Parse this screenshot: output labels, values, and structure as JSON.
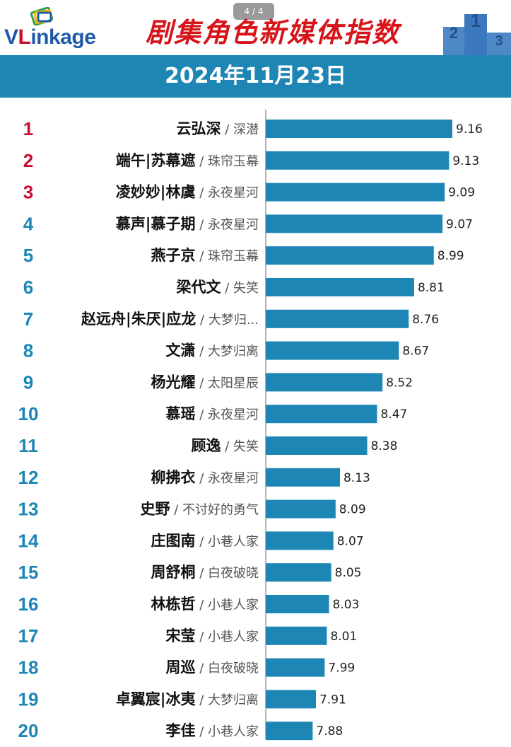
{
  "page_indicator": "4 / 4",
  "logo": {
    "v": "V",
    "l": "L",
    "rest": "inkage"
  },
  "title": "剧集角色新媒体指数",
  "date": "2024年11月23日",
  "colors": {
    "bar": "#1d86b5",
    "rank_top": "#c8102e",
    "rank_other": "#1d86b5",
    "title": "#d7141a",
    "banner": "#1d86b5"
  },
  "icons": [
    "podium-icon",
    "logo-mark-icon"
  ],
  "chart_data": {
    "type": "bar",
    "orientation": "horizontal",
    "title": "剧集角色新媒体指数",
    "subtitle": "2024年11月23日",
    "xlim": [
      0,
      9.16
    ],
    "grid": false,
    "rows": [
      {
        "rank": "1",
        "name": "云弘深",
        "show": "深潜",
        "value": 9.16
      },
      {
        "rank": "2",
        "name": "端午|苏幕遮",
        "show": "珠帘玉幕",
        "value": 9.13
      },
      {
        "rank": "3",
        "name": "凌妙妙|林虞",
        "show": "永夜星河",
        "value": 9.09
      },
      {
        "rank": "4",
        "name": "慕声|慕子期",
        "show": "永夜星河",
        "value": 9.07
      },
      {
        "rank": "5",
        "name": "燕子京",
        "show": "珠帘玉幕",
        "value": 8.99
      },
      {
        "rank": "6",
        "name": "梁代文",
        "show": "失笑",
        "value": 8.81
      },
      {
        "rank": "7",
        "name": "赵远舟|朱厌|应龙",
        "show": "大梦归...",
        "value": 8.76
      },
      {
        "rank": "8",
        "name": "文潇",
        "show": "大梦归离",
        "value": 8.67
      },
      {
        "rank": "9",
        "name": "杨光耀",
        "show": "太阳星辰",
        "value": 8.52
      },
      {
        "rank": "10",
        "name": "慕瑶",
        "show": "永夜星河",
        "value": 8.47
      },
      {
        "rank": "11",
        "name": "顾逸",
        "show": "失笑",
        "value": 8.38
      },
      {
        "rank": "12",
        "name": "柳拂衣",
        "show": "永夜星河",
        "value": 8.13
      },
      {
        "rank": "13",
        "name": "史野",
        "show": "不讨好的勇气",
        "value": 8.09
      },
      {
        "rank": "14",
        "name": "庄图南",
        "show": "小巷人家",
        "value": 8.07
      },
      {
        "rank": "15",
        "name": "周舒桐",
        "show": "白夜破晓",
        "value": 8.05
      },
      {
        "rank": "16",
        "name": "林栋哲",
        "show": "小巷人家",
        "value": 8.03
      },
      {
        "rank": "17",
        "name": "宋莹",
        "show": "小巷人家",
        "value": 8.01
      },
      {
        "rank": "18",
        "name": "周巡",
        "show": "白夜破晓",
        "value": 7.99
      },
      {
        "rank": "19",
        "name": "卓翼宸|冰夷",
        "show": "大梦归离",
        "value": 7.91
      },
      {
        "rank": "20",
        "name": "李佳",
        "show": "小巷人家",
        "value": 7.88
      }
    ]
  }
}
